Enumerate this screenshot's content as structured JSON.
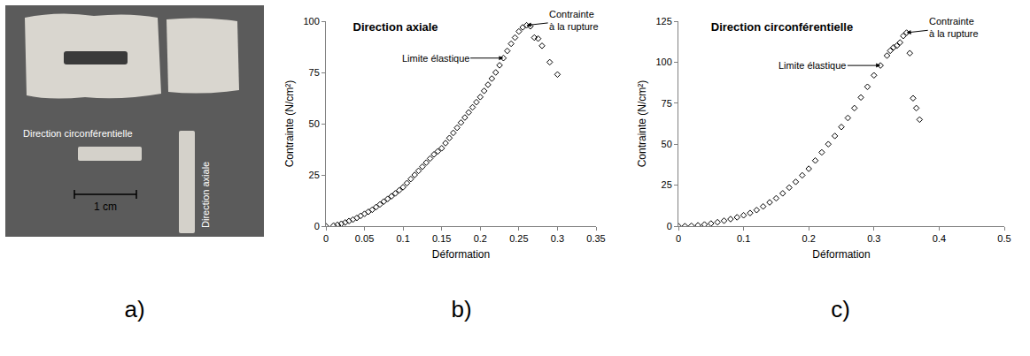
{
  "photo": {
    "panel": "a)",
    "labels": [
      "Direction circonférentielle",
      "Direction axiale"
    ],
    "scale_bar": "1 cm"
  },
  "chart_data": [
    {
      "panel": "b)",
      "type": "scatter",
      "title": "Direction axiale",
      "x_label": "Déformation",
      "y_label": "Contrainte (N/cm²)",
      "x": [
        0,
        0.01,
        0.015,
        0.02,
        0.025,
        0.03,
        0.035,
        0.04,
        0.045,
        0.05,
        0.055,
        0.06,
        0.065,
        0.07,
        0.075,
        0.08,
        0.085,
        0.09,
        0.095,
        0.1,
        0.105,
        0.11,
        0.115,
        0.12,
        0.125,
        0.13,
        0.135,
        0.14,
        0.145,
        0.15,
        0.155,
        0.16,
        0.165,
        0.17,
        0.175,
        0.18,
        0.185,
        0.19,
        0.195,
        0.2,
        0.205,
        0.21,
        0.215,
        0.22,
        0.225,
        0.23,
        0.235,
        0.24,
        0.245,
        0.25,
        0.255,
        0.26,
        0.265,
        0.27,
        0.275,
        0.28,
        0.29,
        0.3
      ],
      "values": [
        0,
        0.3,
        0.7,
        1.2,
        1.8,
        2.5,
        3.2,
        4,
        5,
        6,
        7,
        8,
        9.3,
        10.6,
        12,
        13.3,
        14.6,
        16,
        17.5,
        19,
        21,
        23,
        25,
        27,
        29,
        31,
        33,
        35,
        36.5,
        38,
        40.5,
        43,
        45.5,
        48,
        50.5,
        53,
        55.5,
        58,
        60.5,
        63,
        66,
        69,
        72,
        75,
        78.5,
        82,
        85.5,
        89,
        92,
        95,
        97,
        98,
        97.5,
        92,
        91.5,
        88,
        80,
        74
      ],
      "xlim": [
        0,
        0.35
      ],
      "xticks": [
        0,
        0.05,
        0.1,
        0.15,
        0.2,
        0.25,
        0.3,
        0.35
      ],
      "ylim": [
        0,
        100
      ],
      "yticks": [
        0,
        25,
        50,
        75,
        100
      ],
      "grid": false,
      "marker": "diamond-open",
      "color": "#000000",
      "annotations": [
        {
          "text": "Limite élastique",
          "x": 0.23,
          "y": 82
        },
        {
          "text": "Contrainte à la rupture",
          "x": 0.26,
          "y": 98
        }
      ]
    },
    {
      "panel": "c)",
      "type": "scatter",
      "title": "Direction circonférentielle",
      "x_label": "Déformation",
      "y_label": "Contrainte (N/cm²)",
      "x": [
        0,
        0.01,
        0.02,
        0.03,
        0.04,
        0.05,
        0.06,
        0.07,
        0.08,
        0.09,
        0.1,
        0.11,
        0.12,
        0.13,
        0.14,
        0.15,
        0.16,
        0.17,
        0.18,
        0.19,
        0.2,
        0.21,
        0.22,
        0.23,
        0.24,
        0.25,
        0.26,
        0.27,
        0.28,
        0.29,
        0.3,
        0.31,
        0.32,
        0.325,
        0.33,
        0.335,
        0.34,
        0.345,
        0.35,
        0.355,
        0.36,
        0.365,
        0.37
      ],
      "values": [
        0,
        0,
        0.2,
        0.5,
        1,
        1.6,
        2.4,
        3.3,
        4.3,
        5.4,
        6.6,
        8,
        9.8,
        12,
        14.5,
        17,
        20,
        23.5,
        27,
        31,
        35,
        40,
        45,
        50,
        55,
        60.5,
        66,
        72,
        78.5,
        85,
        92,
        98,
        104,
        107,
        109,
        110,
        112,
        116,
        118,
        105.5,
        78,
        72,
        65
      ],
      "xlim": [
        0,
        0.5
      ],
      "xticks": [
        0,
        0.1,
        0.2,
        0.3,
        0.4,
        0.5
      ],
      "ylim": [
        0,
        125
      ],
      "yticks": [
        0,
        25,
        50,
        75,
        100,
        125
      ],
      "grid": false,
      "marker": "diamond-open",
      "color": "#000000",
      "annotations": [
        {
          "text": "Limite élastique",
          "x": 0.31,
          "y": 98
        },
        {
          "text": "Contrainte à la rupture",
          "x": 0.35,
          "y": 118
        }
      ]
    }
  ]
}
